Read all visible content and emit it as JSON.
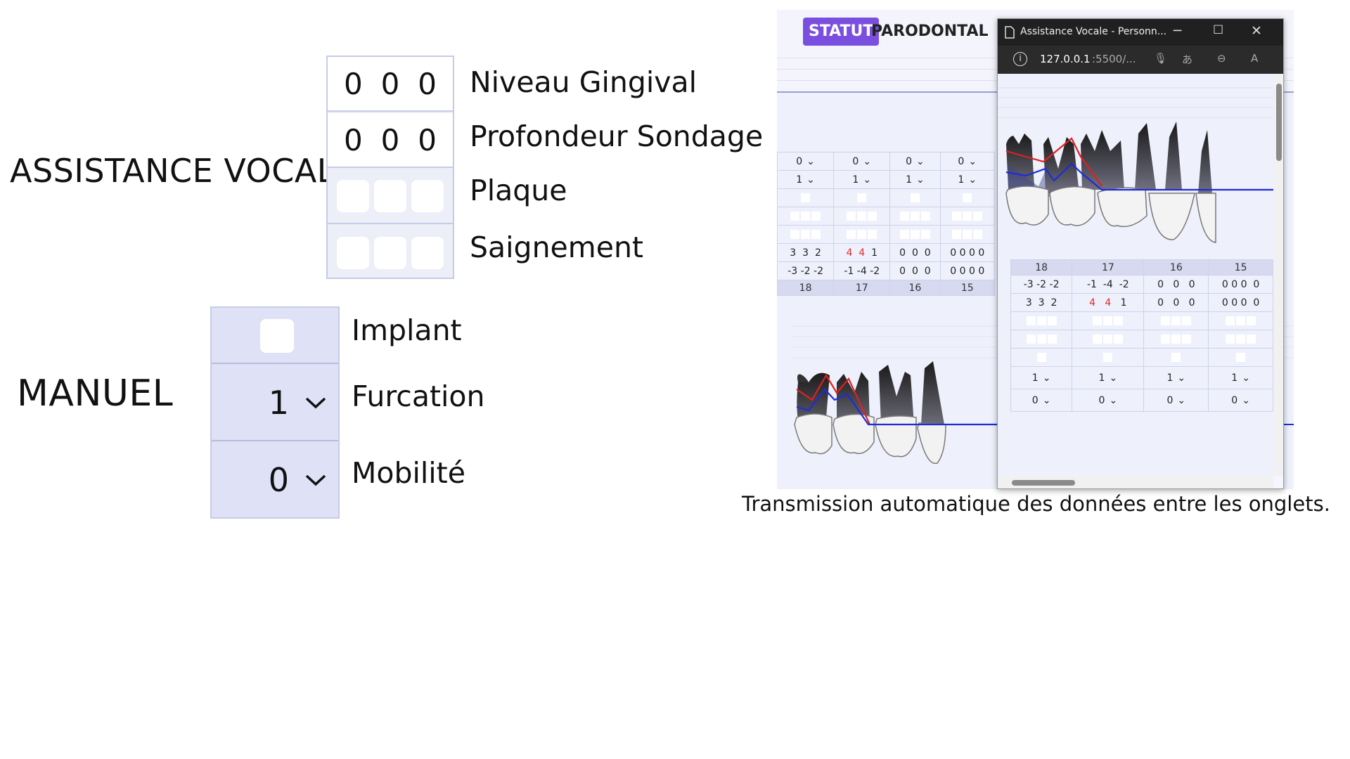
{
  "sections": {
    "voice_label": "ASSISTANCE VOCALE",
    "manual_label": "MANUEL"
  },
  "voice_fields": [
    {
      "label": "Niveau Gingival",
      "values": [
        "0",
        "0",
        "0"
      ]
    },
    {
      "label": "Profondeur Sondage",
      "values": [
        "0",
        "0",
        "0"
      ]
    },
    {
      "label": "Plaque"
    },
    {
      "label": "Saignement"
    }
  ],
  "manual_fields": {
    "implant": {
      "label": "Implant"
    },
    "furcation": {
      "label": "Furcation",
      "value": "1"
    },
    "mobilite": {
      "label": "Mobilité",
      "value": "0"
    }
  },
  "app": {
    "badge": "STATUT",
    "title": "PARODONTAL",
    "upper_teeth": [
      "18",
      "17",
      "16",
      "15"
    ],
    "select_row_1": [
      "0",
      "0",
      "0",
      "0"
    ],
    "select_row_2": [
      "1",
      "1",
      "1",
      "1"
    ],
    "gingival_row": [
      [
        "3",
        "3",
        "2"
      ],
      [
        "4",
        "4",
        "1"
      ],
      [
        "0",
        "0",
        "0"
      ],
      [
        "0",
        "0",
        "0"
      ],
      [
        "0"
      ]
    ],
    "probing_row": [
      [
        "-3",
        "-2",
        "-2"
      ],
      [
        "-1",
        "-4",
        "-2"
      ],
      [
        "0",
        "0",
        "0"
      ],
      [
        "0",
        "0",
        "0"
      ],
      [
        "0"
      ]
    ],
    "trailing_value": "0"
  },
  "popup": {
    "window_title": "Assistance Vocale - Personn...",
    "url_host": "127.0.0.1",
    "url_rest": ":5500/...",
    "teeth": [
      "18",
      "17",
      "16",
      "15"
    ],
    "probing_row": [
      [
        "-3",
        "-2",
        "-2"
      ],
      [
        "-1",
        "-4",
        "-2"
      ],
      [
        "0",
        "0",
        "0"
      ],
      [
        "0",
        "0",
        "0"
      ],
      [
        "0"
      ]
    ],
    "gingival_row": [
      [
        "3",
        "3",
        "2"
      ],
      [
        "4",
        "4",
        "1"
      ],
      [
        "0",
        "0",
        "0"
      ],
      [
        "0",
        "0",
        "0"
      ],
      [
        "0"
      ]
    ],
    "select_row_1": [
      "1",
      "1",
      "1",
      "1"
    ],
    "select_row_2": [
      "0",
      "0",
      "0",
      "0"
    ]
  },
  "caption": "Transmission automatique des données entre les onglets.",
  "colors": {
    "accent": "#7a4fe0",
    "panel_bg": "#eef0fb",
    "red_line": "#e02020",
    "blue_line": "#1f2bd6",
    "highlight_value": "#d93030"
  }
}
